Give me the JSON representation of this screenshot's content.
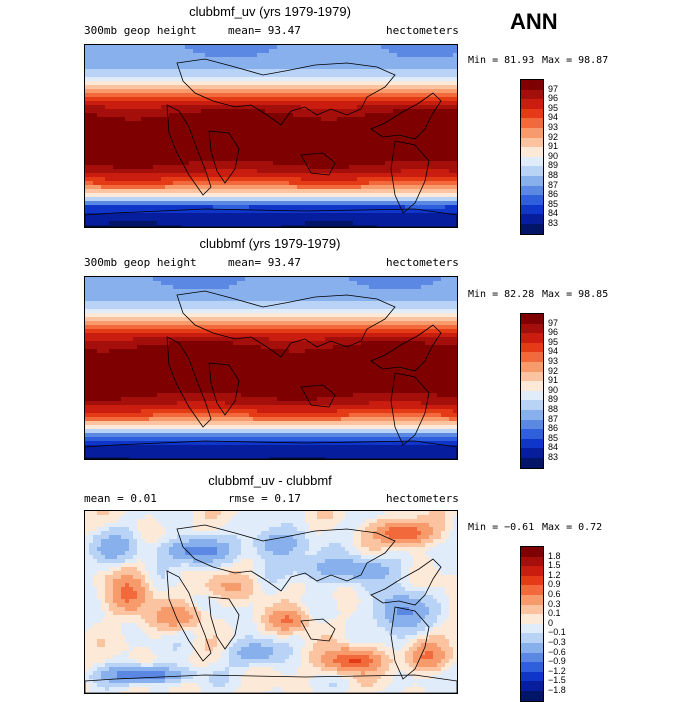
{
  "season": "ANN",
  "chart_data": [
    {
      "type": "heatmap",
      "title": "clubbmf_uv (yrs 1979-1979)",
      "subtitle_left": "300mb geop height",
      "mean_text": "mean=  93.47",
      "units": "hectometers",
      "min_text": "Min =  81.93",
      "max_text": "Max =  98.87",
      "min": 81.93,
      "max": 98.87,
      "levels": [
        "97",
        "96",
        "95",
        "94",
        "93",
        "92",
        "91",
        "90",
        "89",
        "88",
        "87",
        "86",
        "85",
        "84",
        "83"
      ],
      "colors": [
        "#7e0000",
        "#a50f0b",
        "#c81d0f",
        "#e43a16",
        "#f26a3c",
        "#f79a6c",
        "#fcc3a0",
        "#fde9d8",
        "#e0ecfa",
        "#b8d3f5",
        "#88b0ec",
        "#5b88e3",
        "#2f5fdc",
        "#1035c9",
        "#061e9e",
        "#021566"
      ],
      "lat_profile": [
        [
          -90,
          83.0
        ],
        [
          -80,
          83.5
        ],
        [
          -75,
          84
        ],
        [
          -70,
          85
        ],
        [
          -65,
          87.5
        ],
        [
          -60,
          89.5
        ],
        [
          -55,
          91.5
        ],
        [
          -50,
          93
        ],
        [
          -45,
          94.3
        ],
        [
          -40,
          95.3
        ],
        [
          -35,
          96.2
        ],
        [
          -30,
          96.8
        ],
        [
          -25,
          97.2
        ],
        [
          -20,
          97.4
        ],
        [
          -10,
          97.6
        ],
        [
          0,
          97.6
        ],
        [
          10,
          97.5
        ],
        [
          20,
          97.2
        ],
        [
          25,
          96.8
        ],
        [
          30,
          96.0
        ],
        [
          35,
          94.8
        ],
        [
          40,
          93.5
        ],
        [
          45,
          92.3
        ],
        [
          50,
          91.0
        ],
        [
          55,
          89.8
        ],
        [
          60,
          88.8
        ],
        [
          65,
          88.0
        ],
        [
          70,
          87.5
        ],
        [
          80,
          87.2
        ],
        [
          90,
          87.0
        ]
      ]
    },
    {
      "type": "heatmap",
      "title": "clubbmf (yrs 1979-1979)",
      "subtitle_left": "300mb geop height",
      "mean_text": "mean=  93.47",
      "units": "hectometers",
      "min_text": "Min =  82.28",
      "max_text": "Max =  98.85",
      "min": 82.28,
      "max": 98.85,
      "levels": [
        "97",
        "96",
        "95",
        "94",
        "93",
        "92",
        "91",
        "90",
        "89",
        "88",
        "87",
        "86",
        "85",
        "84",
        "83"
      ],
      "colors": [
        "#7e0000",
        "#a50f0b",
        "#c81d0f",
        "#e43a16",
        "#f26a3c",
        "#f79a6c",
        "#fcc3a0",
        "#fde9d8",
        "#e0ecfa",
        "#b8d3f5",
        "#88b0ec",
        "#5b88e3",
        "#2f5fdc",
        "#1035c9",
        "#061e9e",
        "#021566"
      ],
      "lat_profile": [
        [
          -90,
          83.2
        ],
        [
          -80,
          83.6
        ],
        [
          -75,
          84.1
        ],
        [
          -70,
          85.1
        ],
        [
          -65,
          87.6
        ],
        [
          -60,
          89.6
        ],
        [
          -55,
          91.6
        ],
        [
          -50,
          93.1
        ],
        [
          -45,
          94.4
        ],
        [
          -40,
          95.4
        ],
        [
          -35,
          96.2
        ],
        [
          -30,
          96.8
        ],
        [
          -25,
          97.2
        ],
        [
          -20,
          97.4
        ],
        [
          -10,
          97.6
        ],
        [
          0,
          97.6
        ],
        [
          10,
          97.5
        ],
        [
          20,
          97.2
        ],
        [
          25,
          96.8
        ],
        [
          30,
          96.0
        ],
        [
          35,
          94.8
        ],
        [
          40,
          93.5
        ],
        [
          45,
          92.3
        ],
        [
          50,
          91.0
        ],
        [
          55,
          89.8
        ],
        [
          60,
          88.8
        ],
        [
          65,
          88.0
        ],
        [
          70,
          87.5
        ],
        [
          80,
          87.2
        ],
        [
          90,
          87.0
        ]
      ]
    },
    {
      "type": "heatmap",
      "title": "clubbmf_uv - clubbmf",
      "mean_text": "mean =    0.01",
      "rmse_text": "rmse =    0.17",
      "units": "hectometers",
      "min_text": "Min =  −0.61",
      "max_text": "Max =    0.72",
      "min": -0.61,
      "max": 0.72,
      "levels": [
        "1.8",
        "1.5",
        "1.2",
        "0.9",
        "0.6",
        "0.3",
        "0.1",
        "0",
        "−0.1",
        "−0.3",
        "−0.6",
        "−0.9",
        "−1.2",
        "−1.5",
        "−1.8"
      ],
      "colors": [
        "#7e0000",
        "#a50f0b",
        "#c81d0f",
        "#e43a16",
        "#f26a3c",
        "#f79a6c",
        "#fcc3a0",
        "#fde9d8",
        "#e0ecfa",
        "#b8d3f5",
        "#88b0ec",
        "#5b88e3",
        "#2f5fdc",
        "#1035c9",
        "#061e9e",
        "#021566"
      ]
    }
  ]
}
